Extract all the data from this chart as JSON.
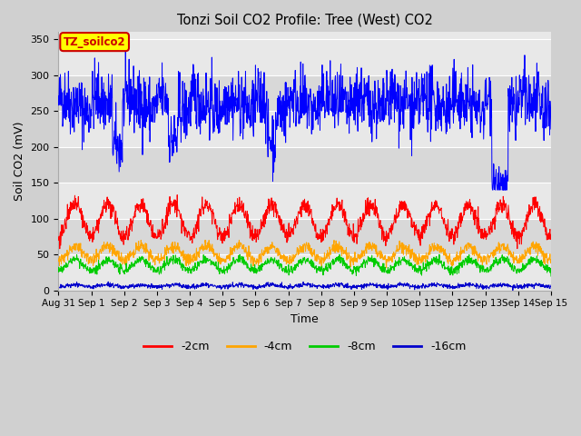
{
  "title": "Tonzi Soil CO2 Profile: Tree (West) CO2",
  "ylabel": "Soil CO2 (mV)",
  "xlabel": "Time",
  "ylim": [
    0,
    360
  ],
  "fig_bg_color": "#d0d0d0",
  "plot_bg_color": "#e8e8e8",
  "band_color_light": "#e8e8e8",
  "band_color_dark": "#d8d8d8",
  "grid_color": "#ffffff",
  "legend_label": "TZ_soilco2",
  "legend_box_facecolor": "#ffff00",
  "legend_box_edgecolor": "#cc0000",
  "legend_text_color": "#cc0000",
  "series_labels": [
    "-2cm",
    "-4cm",
    "-8cm",
    "-16cm"
  ],
  "series_colors": [
    "#ff0000",
    "#ffa500",
    "#00cc00",
    "#0000cc"
  ],
  "blue_line_color": "#0000ff",
  "tick_labels": [
    "Aug 31",
    "Sep 1",
    "Sep 2",
    "Sep 3",
    "Sep 4",
    "Sep 5",
    "Sep 6",
    "Sep 7",
    "Sep 8",
    "Sep 9",
    "Sep 10",
    "Sep 11",
    "Sep 12",
    "Sep 13",
    "Sep 14",
    "Sep 15"
  ],
  "yticks": [
    0,
    50,
    100,
    150,
    200,
    250,
    300,
    350
  ],
  "figsize": [
    6.4,
    4.8
  ],
  "dpi": 100
}
